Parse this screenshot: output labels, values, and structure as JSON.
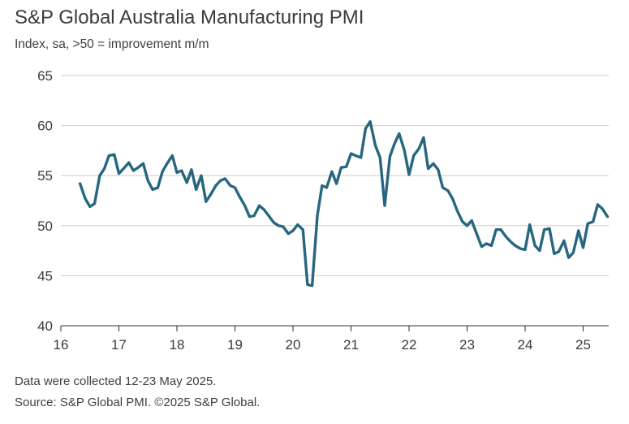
{
  "chart_data": {
    "type": "line",
    "title": "S&P Global Australia Manufacturing PMI",
    "subtitle": "Index, sa, >50 = improvement m/m",
    "xlabel": "",
    "ylabel": "",
    "xlim": [
      16,
      25.35
    ],
    "ylim": [
      40,
      65
    ],
    "x_ticks": [
      16,
      17,
      18,
      19,
      20,
      21,
      22,
      23,
      24,
      25
    ],
    "x_tick_labels": [
      "16",
      "17",
      "18",
      "19",
      "20",
      "21",
      "22",
      "23",
      "24",
      "25"
    ],
    "y_ticks": [
      40,
      45,
      50,
      55,
      60,
      65
    ],
    "y_tick_labels": [
      "40",
      "45",
      "50",
      "55",
      "60",
      "65"
    ],
    "grid": "horizontal",
    "legend": "none",
    "series": [
      {
        "color": "#27667f",
        "points": [
          [
            16.33,
            54.2
          ],
          [
            16.42,
            52.7
          ],
          [
            16.5,
            51.9
          ],
          [
            16.58,
            52.2
          ],
          [
            16.67,
            55.0
          ],
          [
            16.75,
            55.7
          ],
          [
            16.83,
            57.0
          ],
          [
            16.92,
            57.1
          ],
          [
            17.0,
            55.2
          ],
          [
            17.08,
            55.7
          ],
          [
            17.17,
            56.3
          ],
          [
            17.25,
            55.5
          ],
          [
            17.33,
            55.8
          ],
          [
            17.42,
            56.2
          ],
          [
            17.5,
            54.5
          ],
          [
            17.58,
            53.6
          ],
          [
            17.67,
            53.8
          ],
          [
            17.75,
            55.4
          ],
          [
            17.83,
            56.2
          ],
          [
            17.92,
            57.0
          ],
          [
            18.0,
            55.3
          ],
          [
            18.08,
            55.5
          ],
          [
            18.17,
            54.3
          ],
          [
            18.25,
            55.6
          ],
          [
            18.33,
            53.6
          ],
          [
            18.42,
            55.0
          ],
          [
            18.5,
            52.4
          ],
          [
            18.58,
            53.1
          ],
          [
            18.67,
            54.0
          ],
          [
            18.75,
            54.5
          ],
          [
            18.83,
            54.7
          ],
          [
            18.92,
            54.0
          ],
          [
            19.0,
            53.8
          ],
          [
            19.08,
            52.9
          ],
          [
            19.17,
            52.0
          ],
          [
            19.25,
            50.9
          ],
          [
            19.33,
            51.0
          ],
          [
            19.42,
            52.0
          ],
          [
            19.5,
            51.6
          ],
          [
            19.58,
            51.0
          ],
          [
            19.67,
            50.3
          ],
          [
            19.75,
            50.0
          ],
          [
            19.83,
            49.9
          ],
          [
            19.92,
            49.2
          ],
          [
            20.0,
            49.5
          ],
          [
            20.08,
            50.1
          ],
          [
            20.17,
            49.6
          ],
          [
            20.25,
            44.1
          ],
          [
            20.33,
            44.0
          ],
          [
            20.42,
            51.0
          ],
          [
            20.5,
            54.0
          ],
          [
            20.58,
            53.8
          ],
          [
            20.67,
            55.4
          ],
          [
            20.75,
            54.2
          ],
          [
            20.83,
            55.8
          ],
          [
            20.92,
            55.9
          ],
          [
            21.0,
            57.2
          ],
          [
            21.08,
            57.0
          ],
          [
            21.17,
            56.8
          ],
          [
            21.25,
            59.7
          ],
          [
            21.33,
            60.4
          ],
          [
            21.42,
            58.0
          ],
          [
            21.5,
            56.8
          ],
          [
            21.58,
            52.0
          ],
          [
            21.67,
            56.9
          ],
          [
            21.75,
            58.2
          ],
          [
            21.83,
            59.2
          ],
          [
            21.92,
            57.5
          ],
          [
            22.0,
            55.1
          ],
          [
            22.08,
            57.0
          ],
          [
            22.17,
            57.7
          ],
          [
            22.25,
            58.8
          ],
          [
            22.33,
            55.7
          ],
          [
            22.42,
            56.2
          ],
          [
            22.5,
            55.6
          ],
          [
            22.58,
            53.8
          ],
          [
            22.67,
            53.5
          ],
          [
            22.75,
            52.7
          ],
          [
            22.83,
            51.5
          ],
          [
            22.92,
            50.4
          ],
          [
            23.0,
            50.0
          ],
          [
            23.08,
            50.5
          ],
          [
            23.17,
            49.1
          ],
          [
            23.25,
            47.9
          ],
          [
            23.33,
            48.2
          ],
          [
            23.42,
            48.0
          ],
          [
            23.5,
            49.6
          ],
          [
            23.58,
            49.6
          ],
          [
            23.67,
            48.9
          ],
          [
            23.75,
            48.4
          ],
          [
            23.83,
            48.0
          ],
          [
            23.92,
            47.7
          ],
          [
            24.0,
            47.6
          ],
          [
            24.08,
            50.1
          ],
          [
            24.17,
            48.0
          ],
          [
            24.25,
            47.5
          ],
          [
            24.33,
            49.6
          ],
          [
            24.42,
            49.7
          ],
          [
            24.5,
            47.2
          ],
          [
            24.58,
            47.4
          ],
          [
            24.67,
            48.5
          ],
          [
            24.75,
            46.8
          ],
          [
            24.83,
            47.3
          ],
          [
            24.92,
            49.5
          ],
          [
            25.0,
            47.8
          ],
          [
            25.08,
            50.2
          ],
          [
            25.17,
            50.4
          ],
          [
            25.25,
            52.1
          ],
          [
            25.33,
            51.7
          ],
          [
            25.42,
            50.9
          ]
        ]
      }
    ]
  },
  "footnotes": {
    "line1": "Data were collected 12-23 May 2025.",
    "line2": "Source: S&P Global PMI. ©2025 S&P Global."
  }
}
